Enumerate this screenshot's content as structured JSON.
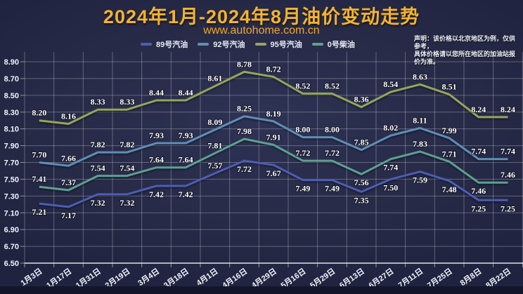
{
  "header": {
    "title": "2024年1月-2024年8月油价变动走势",
    "subtitle": "www.autohome.com.cn"
  },
  "disclaimer": {
    "line1": "声明：该价格以北京地区为例，仅供参考，",
    "line2": "具体价格请以您所在地区的加油站报价为准。"
  },
  "legend": {
    "items": [
      {
        "label": "89号汽油",
        "color": "#4c5db3"
      },
      {
        "label": "92号汽油",
        "color": "#5e8fb8"
      },
      {
        "label": "95号汽油",
        "color": "#95a65a"
      },
      {
        "label": "0号柴油",
        "color": "#5ea093"
      }
    ]
  },
  "colors": {
    "background": "#272b47",
    "title": "#f5b32a",
    "gridline": "rgba(255,255,255,0.28)",
    "label": "#ffffff"
  },
  "chart_data": {
    "type": "line",
    "title": "2024年1月-2024年8月油价变动走势",
    "xlabel": "",
    "ylabel": "",
    "ylim": [
      6.5,
      8.9
    ],
    "ytick_step": 0.2,
    "grid": true,
    "legend_position": "top",
    "categories": [
      "1月3日",
      "1月17日",
      "1月31日",
      "2月19日",
      "3月4日",
      "3月18日",
      "4月1日",
      "4月16日",
      "4月29日",
      "5月16日",
      "5月29日",
      "6月13日",
      "6月27日",
      "7月11日",
      "7月25日",
      "8月8日",
      "8月22日"
    ],
    "series": [
      {
        "name": "89号汽油",
        "color": "#4c5db3",
        "values": [
          7.21,
          7.17,
          7.32,
          7.32,
          7.42,
          7.42,
          7.57,
          7.72,
          7.67,
          7.49,
          7.49,
          7.35,
          7.5,
          7.59,
          7.48,
          7.25,
          7.25
        ],
        "label_default": "below",
        "label_exceptions": [
          6
        ]
      },
      {
        "name": "92号汽油",
        "color": "#5e8fb8",
        "values": [
          7.7,
          7.66,
          7.82,
          7.82,
          7.93,
          7.93,
          8.09,
          8.25,
          8.19,
          8.0,
          8.0,
          7.85,
          8.02,
          8.11,
          7.99,
          7.74,
          7.74
        ],
        "label_default": "above",
        "label_exceptions": []
      },
      {
        "name": "95号汽油",
        "color": "#95a65a",
        "values": [
          8.2,
          8.16,
          8.33,
          8.33,
          8.44,
          8.44,
          8.61,
          8.78,
          8.72,
          8.52,
          8.52,
          8.36,
          8.54,
          8.63,
          8.51,
          8.24,
          8.24
        ],
        "label_default": "above",
        "label_exceptions": []
      },
      {
        "name": "0号柴油",
        "color": "#5ea093",
        "values": [
          7.41,
          7.37,
          7.54,
          7.54,
          7.64,
          7.64,
          7.81,
          7.98,
          7.91,
          7.72,
          7.72,
          7.56,
          7.74,
          7.83,
          7.71,
          7.46,
          7.46
        ],
        "label_default": "above",
        "label_exceptions": [
          11,
          12,
          15
        ]
      }
    ]
  }
}
